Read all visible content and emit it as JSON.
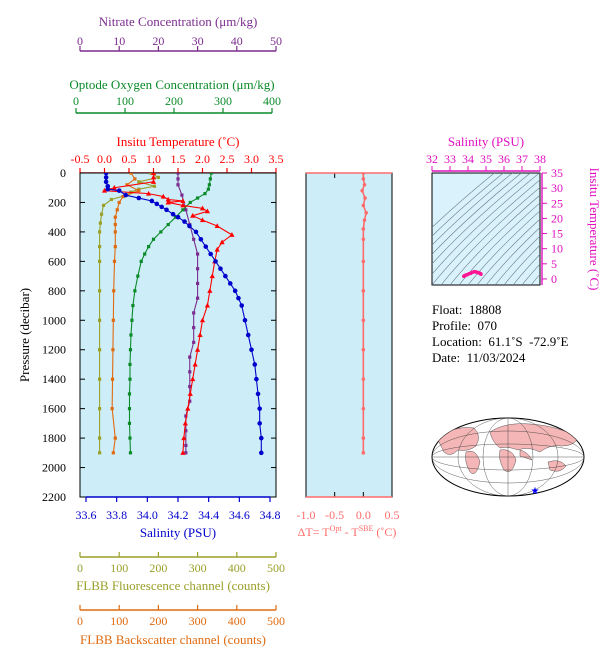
{
  "colors": {
    "nitrate": "#7b2c8e",
    "oxygen": "#0b8a2a",
    "temperature": "#ff0000",
    "salinity": "#0000cc",
    "fluorescence": "#9aa02a",
    "backscatter": "#e06a10",
    "panel_bg": "#cdeef8",
    "ts_panel_bg": "#d9f2fb",
    "dt_line": "#ff6b6b",
    "ts_axis": "#e010c0"
  },
  "main_panel": {
    "ylabel": "Pressure (decibar)",
    "pressure_ticks": [
      "0",
      "200",
      "400",
      "600",
      "800",
      "1000",
      "1200",
      "1400",
      "1600",
      "1800",
      "2000",
      "2200"
    ]
  },
  "axes": {
    "nitrate": {
      "label": "Nitrate Concentration (μm/kg)",
      "ticks": [
        "0",
        "10",
        "20",
        "30",
        "40",
        "50"
      ],
      "range": [
        0,
        50
      ]
    },
    "oxygen": {
      "label": "Optode Oxygen Concentration (μm/kg)",
      "ticks": [
        "0",
        "100",
        "200",
        "300",
        "400"
      ],
      "range": [
        0,
        400
      ]
    },
    "temperature": {
      "label": "Insitu Temperature (˚C)",
      "ticks": [
        "-0.5",
        "0.0",
        "0.5",
        "1.0",
        "1.5",
        "2.0",
        "2.5",
        "3.0",
        "3.5"
      ],
      "range": [
        -0.5,
        3.5
      ]
    },
    "salinity": {
      "label": "Salinity (PSU)",
      "ticks": [
        "33.6",
        "33.8",
        "34.0",
        "34.2",
        "34.4",
        "34.6",
        "34.8"
      ],
      "range": [
        33.6,
        34.8
      ]
    },
    "fluorescence": {
      "label": "FLBB Fluorescence channel (counts)",
      "ticks": [
        "0",
        "100",
        "200",
        "300",
        "400",
        "500"
      ],
      "range": [
        0,
        500
      ]
    },
    "backscatter": {
      "label": "FLBB Backscatter channel (counts)",
      "ticks": [
        "0",
        "100",
        "200",
        "300",
        "400",
        "500"
      ],
      "range": [
        0,
        500
      ]
    }
  },
  "dt_panel": {
    "xlabel_main": "ΔT= T",
    "xlabel_sup1": "Opt",
    "xlabel_mid": " - T",
    "xlabel_sup2": "SBE",
    "xlabel_unit": " (˚C)",
    "ticks": [
      "-1.0",
      "-0.5",
      "0.0",
      "0.5"
    ],
    "range": [
      -1.0,
      0.5
    ]
  },
  "ts_panel": {
    "title": "Salinity (PSU)",
    "salinity_ticks": [
      "32",
      "33",
      "34",
      "35",
      "36",
      "37",
      "38"
    ],
    "temp_ticks": [
      "0",
      "5",
      "10",
      "15",
      "20",
      "25",
      "30",
      "35"
    ],
    "ylabel": "Insitu Temperature (˚C)"
  },
  "info": {
    "float": "Float:  18808",
    "profile": "Profile:  070",
    "location": "Location:  61.1˚S  -72.9˚E",
    "date": "Date:  11/03/2024"
  },
  "chart_data": [
    {
      "type": "line",
      "title": "",
      "ylabel": "Pressure (decibar)",
      "ylim": [
        0,
        2200
      ],
      "y_reversed": true,
      "series": [
        {
          "name": "Salinity (PSU)",
          "xlim": [
            33.6,
            34.8
          ],
          "points": [
            [
              33.76,
              0
            ],
            [
              33.76,
              30
            ],
            [
              33.76,
              60
            ],
            [
              33.77,
              90
            ],
            [
              33.77,
              110
            ],
            [
              33.84,
              120
            ],
            [
              33.88,
              150
            ],
            [
              33.96,
              170
            ],
            [
              34.04,
              190
            ],
            [
              34.07,
              210
            ],
            [
              34.1,
              230
            ],
            [
              34.13,
              250
            ],
            [
              34.17,
              280
            ],
            [
              34.2,
              300
            ],
            [
              34.24,
              330
            ],
            [
              34.27,
              360
            ],
            [
              34.31,
              400
            ],
            [
              34.34,
              450
            ],
            [
              34.37,
              500
            ],
            [
              34.4,
              550
            ],
            [
              34.43,
              600
            ],
            [
              34.46,
              650
            ],
            [
              34.49,
              700
            ],
            [
              34.52,
              750
            ],
            [
              34.55,
              800
            ],
            [
              34.57,
              850
            ],
            [
              34.59,
              900
            ],
            [
              34.61,
              1000
            ],
            [
              34.63,
              1100
            ],
            [
              34.65,
              1200
            ],
            [
              34.67,
              1300
            ],
            [
              34.68,
              1400
            ],
            [
              34.69,
              1500
            ],
            [
              34.7,
              1600
            ],
            [
              34.7,
              1700
            ],
            [
              34.71,
              1800
            ],
            [
              34.71,
              1900
            ]
          ]
        },
        {
          "name": "Insitu Temperature (˚C)",
          "xlim": [
            -0.5,
            3.5
          ],
          "points": [
            [
              1.0,
              0
            ],
            [
              1.0,
              30
            ],
            [
              1.0,
              60
            ],
            [
              0.2,
              100
            ],
            [
              0.0,
              120
            ],
            [
              0.9,
              140
            ],
            [
              1.2,
              160
            ],
            [
              1.3,
              180
            ],
            [
              1.6,
              190
            ],
            [
              1.3,
              200
            ],
            [
              1.6,
              220
            ],
            [
              2.0,
              240
            ],
            [
              2.1,
              260
            ],
            [
              1.8,
              290
            ],
            [
              2.0,
              320
            ],
            [
              2.3,
              360
            ],
            [
              2.6,
              420
            ],
            [
              2.4,
              470
            ],
            [
              2.3,
              520
            ],
            [
              2.25,
              600
            ],
            [
              2.2,
              700
            ],
            [
              2.15,
              800
            ],
            [
              2.1,
              900
            ],
            [
              2.0,
              1000
            ],
            [
              1.95,
              1100
            ],
            [
              1.9,
              1200
            ],
            [
              1.85,
              1300
            ],
            [
              1.8,
              1400
            ],
            [
              1.75,
              1500
            ],
            [
              1.7,
              1600
            ],
            [
              1.65,
              1700
            ],
            [
              1.62,
              1800
            ],
            [
              1.6,
              1900
            ]
          ]
        },
        {
          "name": "Optode Oxygen Concentration (μm/kg)",
          "xlim": [
            0,
            400
          ],
          "points": [
            [
              268,
              0
            ],
            [
              266,
              40
            ],
            [
              264,
              80
            ],
            [
              262,
              110
            ],
            [
              255,
              140
            ],
            [
              240,
              170
            ],
            [
              225,
              200
            ],
            [
              210,
              250
            ],
            [
              195,
              300
            ],
            [
              180,
              350
            ],
            [
              165,
              400
            ],
            [
              150,
              450
            ],
            [
              140,
              500
            ],
            [
              132,
              550
            ],
            [
              125,
              600
            ],
            [
              118,
              700
            ],
            [
              112,
              800
            ],
            [
              108,
              900
            ],
            [
              106,
              1000
            ],
            [
              104,
              1100
            ],
            [
              103,
              1200
            ],
            [
              102,
              1300
            ],
            [
              102,
              1400
            ],
            [
              101,
              1500
            ],
            [
              101,
              1600
            ],
            [
              101,
              1700
            ],
            [
              102,
              1800
            ],
            [
              103,
              1900
            ]
          ]
        },
        {
          "name": "Nitrate Concentration (μm/kg)",
          "xlim": [
            0,
            50
          ],
          "points": [
            [
              25,
              0
            ],
            [
              25,
              40
            ],
            [
              25,
              80
            ],
            [
              26,
              150
            ],
            [
              27,
              250
            ],
            [
              28,
              350
            ],
            [
              29,
              450
            ],
            [
              30,
              550
            ],
            [
              30,
              650
            ],
            [
              30,
              750
            ],
            [
              30,
              850
            ],
            [
              29,
              950
            ],
            [
              29,
              1050
            ],
            [
              29,
              1150
            ],
            [
              28,
              1250
            ],
            [
              28,
              1350
            ],
            [
              28,
              1450
            ],
            [
              28,
              1550
            ],
            [
              27,
              1650
            ],
            [
              27,
              1750
            ],
            [
              27,
              1850
            ],
            [
              27,
              1900
            ]
          ]
        },
        {
          "name": "FLBB Fluorescence channel (counts)",
          "xlim": [
            0,
            500
          ],
          "points": [
            [
              180,
              0
            ],
            [
              200,
              30
            ],
            [
              150,
              60
            ],
            [
              190,
              90
            ],
            [
              150,
              110
            ],
            [
              130,
              130
            ],
            [
              120,
              150
            ],
            [
              80,
              180
            ],
            [
              60,
              220
            ],
            [
              55,
              280
            ],
            [
              52,
              340
            ],
            [
              50,
              400
            ],
            [
              50,
              500
            ],
            [
              50,
              600
            ],
            [
              50,
              800
            ],
            [
              50,
              1000
            ],
            [
              50,
              1200
            ],
            [
              50,
              1400
            ],
            [
              50,
              1600
            ],
            [
              50,
              1800
            ],
            [
              50,
              1900
            ]
          ]
        },
        {
          "name": "FLBB Backscatter channel (counts)",
          "xlim": [
            0,
            500
          ],
          "points": [
            [
              130,
              0
            ],
            [
              140,
              40
            ],
            [
              120,
              80
            ],
            [
              150,
              120
            ],
            [
              110,
              160
            ],
            [
              100,
              200
            ],
            [
              95,
              250
            ],
            [
              90,
              300
            ],
            [
              90,
              350
            ],
            [
              90,
              400
            ],
            [
              90,
              500
            ],
            [
              88,
              600
            ],
            [
              86,
              800
            ],
            [
              85,
              1000
            ],
            [
              84,
              1200
            ],
            [
              83,
              1400
            ],
            [
              82,
              1600
            ],
            [
              90,
              1800
            ],
            [
              85,
              1900
            ]
          ]
        }
      ]
    },
    {
      "type": "line",
      "title": "",
      "xlabel": "ΔT= T Opt - T SBE (˚C)",
      "xlim": [
        -1.0,
        0.5
      ],
      "ylim": [
        0,
        2200
      ],
      "y_reversed": true,
      "series": [
        {
          "name": "ΔT",
          "points": [
            [
              0.0,
              0
            ],
            [
              0.0,
              40
            ],
            [
              0.02,
              80
            ],
            [
              -0.02,
              120
            ],
            [
              0.03,
              170
            ],
            [
              0.0,
              220
            ],
            [
              0.05,
              270
            ],
            [
              0.02,
              320
            ],
            [
              0.0,
              380
            ],
            [
              0.0,
              450
            ],
            [
              0.0,
              600
            ],
            [
              0.0,
              800
            ],
            [
              0.0,
              1000
            ],
            [
              0.0,
              1200
            ],
            [
              0.0,
              1400
            ],
            [
              0.0,
              1600
            ],
            [
              0.0,
              1800
            ],
            [
              0.0,
              1900
            ]
          ]
        }
      ]
    },
    {
      "type": "scatter",
      "title": "Salinity (PSU)",
      "ylabel": "Insitu Temperature (˚C)",
      "xlim": [
        32,
        38
      ],
      "ylim": [
        -2,
        35
      ],
      "series": [
        {
          "name": "T-S",
          "points": [
            [
              33.77,
              0.9
            ],
            [
              33.8,
              1.0
            ],
            [
              33.85,
              1.2
            ],
            [
              33.95,
              1.4
            ],
            [
              34.05,
              1.7
            ],
            [
              34.15,
              1.9
            ],
            [
              34.25,
              2.2
            ],
            [
              34.35,
              2.4
            ],
            [
              34.45,
              2.3
            ],
            [
              34.55,
              2.1
            ],
            [
              34.65,
              1.9
            ],
            [
              34.7,
              1.7
            ],
            [
              34.72,
              1.6
            ]
          ]
        }
      ]
    }
  ]
}
